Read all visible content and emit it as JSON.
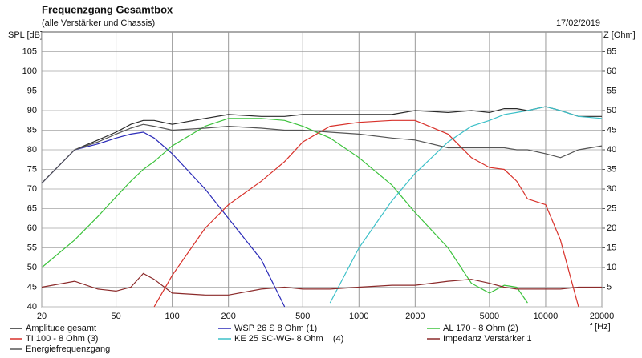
{
  "chart_data": {
    "type": "line",
    "title": "Frequenzgang Gesamtbox",
    "subtitle": "(alle Verstärker und Chassis)",
    "date": "17/02/2019",
    "y_label": "SPL [dB]",
    "y2_label": "Z [Ohm]",
    "x_label": "f [Hz]",
    "log_x": true,
    "grid": true,
    "x": [
      20,
      30,
      40,
      50,
      60,
      70,
      80,
      100,
      150,
      200,
      300,
      400,
      500,
      700,
      1000,
      1500,
      2000,
      3000,
      4000,
      5000,
      6000,
      7000,
      8000,
      10000,
      12000,
      15000,
      20000
    ],
    "xlim": [
      20,
      20000
    ],
    "xticks": [
      20,
      50,
      100,
      200,
      500,
      1000,
      2000,
      5000,
      10000,
      20000
    ],
    "ylim": [
      40,
      110
    ],
    "yticks": [
      40,
      45,
      50,
      55,
      60,
      65,
      70,
      75,
      80,
      85,
      90,
      95,
      100,
      105
    ],
    "y2lim": [
      0,
      70
    ],
    "y2ticks": [
      5,
      10,
      15,
      20,
      25,
      30,
      35,
      40,
      45,
      50,
      55,
      60,
      65
    ],
    "series": [
      {
        "name": "Amplitude gesamt",
        "color": "#2a2a2a",
        "values": [
          71.5,
          80,
          82.5,
          84.5,
          86.5,
          87.5,
          87.5,
          86.5,
          88,
          89,
          88.5,
          88.5,
          89,
          89,
          89,
          89,
          90,
          89.5,
          90,
          89.5,
          90.5,
          90.5,
          90,
          91,
          90,
          88.5,
          88.5
        ]
      },
      {
        "name": "WSP 26 S 8 Ohm (1)",
        "color": "#2b2bb8",
        "values": [
          71.5,
          80,
          81.5,
          83,
          84,
          84.5,
          83,
          79,
          70,
          62.5,
          52,
          40,
          null,
          null,
          null,
          null,
          null,
          null,
          null,
          null,
          null,
          null,
          null,
          null,
          null,
          null,
          null
        ]
      },
      {
        "name": "AL 170 - 8 Ohm (2)",
        "color": "#3cc23c",
        "values": [
          50,
          57,
          63,
          68,
          72,
          75,
          77,
          81,
          86,
          88,
          88,
          87.5,
          86,
          83,
          78,
          71,
          64,
          55,
          46,
          43.5,
          45.5,
          45,
          41,
          null,
          null,
          null,
          null
        ]
      },
      {
        "name": "TI 100 - 8 Ohm (3)",
        "color": "#d8312a",
        "values": [
          null,
          null,
          null,
          null,
          null,
          null,
          40,
          48,
          60,
          66,
          72,
          77,
          82,
          86,
          87,
          87.5,
          87.5,
          84,
          78,
          75.5,
          75,
          72,
          67.5,
          66,
          57,
          40,
          null
        ]
      },
      {
        "name": "KE 25 SC-WG- 8 Ohm    (4)",
        "color": "#3cc0c8",
        "values": [
          null,
          null,
          null,
          null,
          null,
          null,
          null,
          null,
          null,
          null,
          null,
          null,
          null,
          41,
          55,
          67,
          74,
          82,
          86,
          87.5,
          89,
          89.5,
          90,
          91,
          90,
          88.5,
          88
        ]
      },
      {
        "name": "Impedanz Verstärker 1",
        "color": "#8b2a2a",
        "axis": "y2",
        "values": [
          5,
          6.5,
          4.5,
          4,
          5,
          8.5,
          7,
          3.5,
          3,
          3,
          4.5,
          5,
          4.5,
          4.5,
          5,
          5.5,
          5.5,
          6.5,
          7,
          6,
          5,
          4.5,
          4.5,
          4.5,
          4.5,
          5,
          5
        ]
      },
      {
        "name": "Energiefrequenzgang",
        "color": "#555555",
        "values": [
          71.5,
          80,
          82,
          84,
          85.5,
          86.5,
          86,
          85,
          85.5,
          86,
          85.5,
          85,
          85,
          84.5,
          84,
          83,
          82.5,
          80.5,
          80.5,
          80.5,
          80.5,
          80,
          80,
          79,
          78,
          80,
          81
        ]
      }
    ]
  }
}
